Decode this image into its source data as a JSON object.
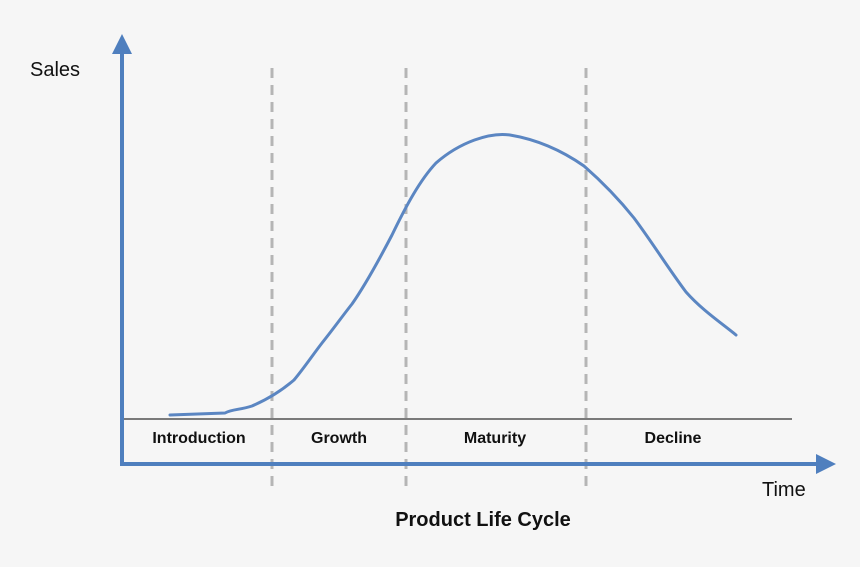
{
  "title": "Product Life Cycle",
  "axes": {
    "y_label": "Sales",
    "x_label": "Time"
  },
  "stages": [
    {
      "label": "Introduction"
    },
    {
      "label": "Growth"
    },
    {
      "label": "Maturity"
    },
    {
      "label": "Decline"
    }
  ],
  "colors": {
    "axis": "#4f7fbe",
    "curve": "#5b86c2",
    "divider": "#b5b5b5",
    "baseline": "#7a7a7a",
    "background": "#f6f6f6"
  }
}
